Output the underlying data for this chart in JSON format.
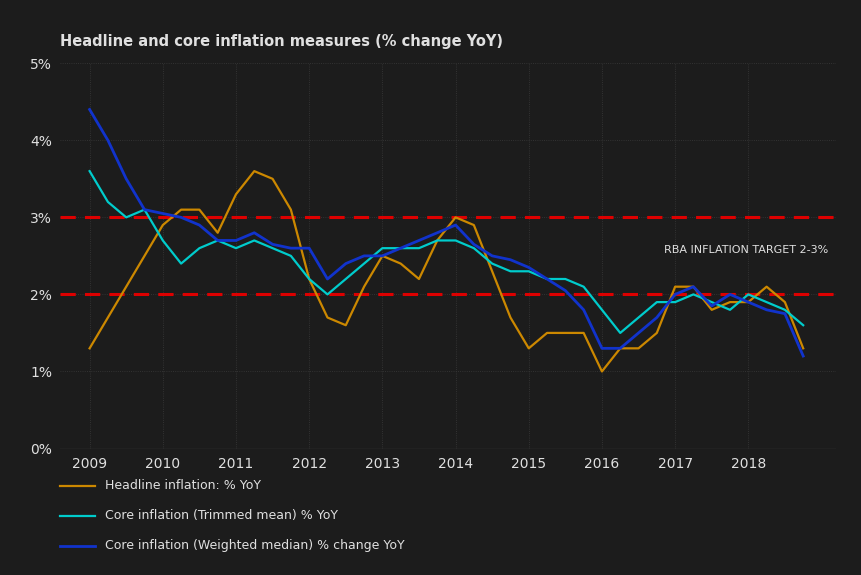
{
  "title": "Headline and core inflation measures (% change YoY)",
  "bg_color": "#1c1c1c",
  "text_color": "#e0e0e0",
  "grid_color": "#3a3a3a",
  "target_label": "RBA INFLATION TARGET 2-3%",
  "target_y1": 2.0,
  "target_y2": 3.0,
  "target_color": "#dd0000",
  "ylim": [
    0,
    5.0
  ],
  "yticks": [
    0,
    1,
    2,
    3,
    4,
    5
  ],
  "xlim": [
    2008.6,
    2019.2
  ],
  "xtick_years": [
    2009,
    2010,
    2011,
    2012,
    2013,
    2014,
    2015,
    2016,
    2017,
    2018
  ],
  "headline_color": "#cc8800",
  "trimmed_color": "#00cccc",
  "weighted_color": "#1133cc",
  "headline_label": "Headline inflation: % YoY",
  "trimmed_label": "Core inflation (Trimmed mean) % YoY",
  "weighted_label": "Core inflation (Weighted median) % change YoY",
  "headline_x": [
    2009.0,
    2009.25,
    2009.5,
    2009.75,
    2010.0,
    2010.25,
    2010.5,
    2010.75,
    2011.0,
    2011.25,
    2011.5,
    2011.75,
    2012.0,
    2012.25,
    2012.5,
    2012.75,
    2013.0,
    2013.25,
    2013.5,
    2013.75,
    2014.0,
    2014.25,
    2014.5,
    2014.75,
    2015.0,
    2015.25,
    2015.5,
    2015.75,
    2016.0,
    2016.25,
    2016.5,
    2016.75,
    2017.0,
    2017.25,
    2017.5,
    2017.75,
    2018.0,
    2018.25,
    2018.5,
    2018.75
  ],
  "headline_y": [
    1.3,
    1.7,
    2.1,
    2.5,
    2.9,
    3.1,
    3.1,
    2.8,
    3.3,
    3.6,
    3.5,
    3.1,
    2.2,
    1.7,
    1.6,
    2.1,
    2.5,
    2.4,
    2.2,
    2.7,
    3.0,
    2.9,
    2.3,
    1.7,
    1.3,
    1.5,
    1.5,
    1.5,
    1.0,
    1.3,
    1.3,
    1.5,
    2.1,
    2.1,
    1.8,
    1.9,
    1.9,
    2.1,
    1.9,
    1.3
  ],
  "trimmed_x": [
    2009.0,
    2009.25,
    2009.5,
    2009.75,
    2010.0,
    2010.25,
    2010.5,
    2010.75,
    2011.0,
    2011.25,
    2011.5,
    2011.75,
    2012.0,
    2012.25,
    2012.5,
    2012.75,
    2013.0,
    2013.25,
    2013.5,
    2013.75,
    2014.0,
    2014.25,
    2014.5,
    2014.75,
    2015.0,
    2015.25,
    2015.5,
    2015.75,
    2016.0,
    2016.25,
    2016.5,
    2016.75,
    2017.0,
    2017.25,
    2017.5,
    2017.75,
    2018.0,
    2018.25,
    2018.5,
    2018.75
  ],
  "trimmed_y": [
    3.6,
    3.2,
    3.0,
    3.1,
    2.7,
    2.4,
    2.6,
    2.7,
    2.6,
    2.7,
    2.6,
    2.5,
    2.2,
    2.0,
    2.2,
    2.4,
    2.6,
    2.6,
    2.6,
    2.7,
    2.7,
    2.6,
    2.4,
    2.3,
    2.3,
    2.2,
    2.2,
    2.1,
    1.8,
    1.5,
    1.7,
    1.9,
    1.9,
    2.0,
    1.9,
    1.8,
    2.0,
    1.9,
    1.8,
    1.6
  ],
  "weighted_x": [
    2009.0,
    2009.25,
    2009.5,
    2009.75,
    2010.0,
    2010.25,
    2010.5,
    2010.75,
    2011.0,
    2011.25,
    2011.5,
    2011.75,
    2012.0,
    2012.25,
    2012.5,
    2012.75,
    2013.0,
    2013.25,
    2013.5,
    2013.75,
    2014.0,
    2014.25,
    2014.5,
    2014.75,
    2015.0,
    2015.25,
    2015.5,
    2015.75,
    2016.0,
    2016.25,
    2016.5,
    2016.75,
    2017.0,
    2017.25,
    2017.5,
    2017.75,
    2018.0,
    2018.25,
    2018.5,
    2018.75
  ],
  "weighted_y": [
    4.4,
    4.0,
    3.5,
    3.1,
    3.05,
    3.0,
    2.9,
    2.7,
    2.7,
    2.8,
    2.65,
    2.6,
    2.6,
    2.2,
    2.4,
    2.5,
    2.5,
    2.6,
    2.7,
    2.8,
    2.9,
    2.65,
    2.5,
    2.45,
    2.35,
    2.2,
    2.05,
    1.8,
    1.3,
    1.3,
    1.5,
    1.7,
    2.0,
    2.1,
    1.85,
    2.0,
    1.9,
    1.8,
    1.75,
    1.2
  ]
}
